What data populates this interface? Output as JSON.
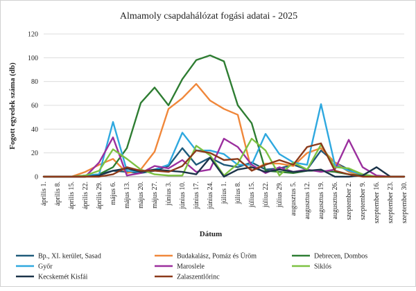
{
  "chart_data": {
    "type": "line",
    "title": "Almamoly csapdahálózat fogási adatai - 2025",
    "xlabel": "Dátum",
    "ylabel": "Fogott egyedek száma (db)",
    "ylim": [
      0,
      120
    ],
    "yticks": [
      0,
      20,
      40,
      60,
      80,
      100,
      120
    ],
    "grid": "horizontal",
    "legend_position": "bottom",
    "categories": [
      "április 1.",
      "április 8.",
      "április 15.",
      "április 22.",
      "április 29.",
      "május 6.",
      "május 13.",
      "május 20.",
      "május 27.",
      "június 3.",
      "június 10.",
      "június 17.",
      "június 24.",
      "július 1.",
      "július 8.",
      "július 15.",
      "július 22.",
      "július 29.",
      "augusztus 5.",
      "augusztus 12.",
      "augusztus 19.",
      "augusztus 26.",
      "szeptember 2.",
      "szeptember 9.",
      "szeptember 16.",
      "szeptember 23.",
      "szeptember 30."
    ],
    "series": [
      {
        "name": "Bp., XI. kerület, Sasad",
        "color": "#1f5a7a",
        "values": [
          0,
          0,
          0,
          1,
          2,
          5,
          4,
          3,
          5,
          9,
          24,
          10,
          16,
          10,
          8,
          12,
          6,
          7,
          10,
          6,
          22,
          12,
          6,
          1,
          0,
          0,
          0
        ]
      },
      {
        "name": "Budakalász, Pomáz és Üröm",
        "color": "#f0873a",
        "values": [
          0,
          0,
          0,
          4,
          10,
          15,
          3,
          6,
          21,
          57,
          66,
          78,
          64,
          57,
          52,
          5,
          11,
          11,
          9,
          20,
          24,
          12,
          4,
          1,
          0,
          0,
          0
        ]
      },
      {
        "name": "Debrecen, Dombos",
        "color": "#2e7d32",
        "values": [
          0,
          0,
          0,
          0,
          2,
          8,
          24,
          62,
          75,
          60,
          82,
          98,
          102,
          97,
          60,
          45,
          5,
          4,
          3,
          5,
          5,
          4,
          2,
          1,
          0,
          0,
          0
        ]
      },
      {
        "name": "Győr",
        "color": "#2ea8df",
        "values": [
          0,
          0,
          0,
          1,
          2,
          46,
          5,
          4,
          6,
          10,
          37,
          22,
          22,
          19,
          10,
          10,
          36,
          19,
          12,
          10,
          61,
          10,
          5,
          2,
          0,
          0,
          0
        ]
      },
      {
        "name": "Maroslele",
        "color": "#9b2f9e",
        "values": [
          0,
          0,
          0,
          0,
          12,
          33,
          1,
          3,
          9,
          7,
          14,
          4,
          6,
          32,
          25,
          10,
          3,
          8,
          4,
          6,
          4,
          6,
          31,
          8,
          1,
          0,
          0
        ]
      },
      {
        "name": "Siklós",
        "color": "#7dc242",
        "values": [
          0,
          0,
          0,
          1,
          5,
          23,
          15,
          6,
          2,
          1,
          1,
          26,
          18,
          1,
          11,
          32,
          22,
          1,
          12,
          6,
          27,
          8,
          7,
          2,
          0,
          0,
          0
        ]
      },
      {
        "name": "Kecskemét Kisfái",
        "color": "#1b3349",
        "values": [
          0,
          0,
          0,
          0,
          1,
          5,
          7,
          4,
          6,
          5,
          4,
          2,
          16,
          0,
          6,
          8,
          4,
          6,
          4,
          5,
          6,
          0,
          0,
          1,
          8,
          0,
          0
        ]
      },
      {
        "name": "Zalaszentlőrinc",
        "color": "#8b3a1a",
        "values": [
          0,
          0,
          0,
          0,
          0,
          2,
          8,
          5,
          5,
          4,
          9,
          22,
          20,
          14,
          15,
          5,
          10,
          14,
          10,
          25,
          28,
          5,
          2,
          0,
          0,
          0,
          0
        ]
      }
    ]
  }
}
